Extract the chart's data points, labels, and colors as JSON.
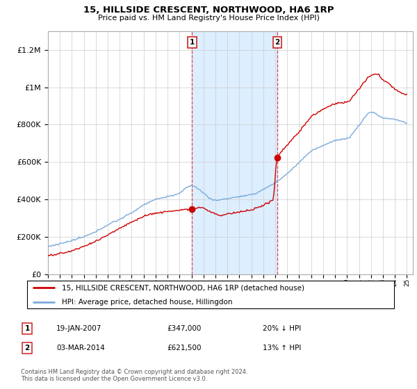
{
  "title": "15, HILLSIDE CRESCENT, NORTHWOOD, HA6 1RP",
  "subtitle": "Price paid vs. HM Land Registry's House Price Index (HPI)",
  "legend_line1": "15, HILLSIDE CRESCENT, NORTHWOOD, HA6 1RP (detached house)",
  "legend_line2": "HPI: Average price, detached house, Hillingdon",
  "sale1_date": "19-JAN-2007",
  "sale1_price": "£347,000",
  "sale1_hpi": "20% ↓ HPI",
  "sale1_year": 2007.05,
  "sale1_value": 347000,
  "sale2_date": "03-MAR-2014",
  "sale2_price": "£621,500",
  "sale2_hpi": "13% ↑ HPI",
  "sale2_year": 2014.17,
  "sale2_value": 621500,
  "footer": "Contains HM Land Registry data © Crown copyright and database right 2024.\nThis data is licensed under the Open Government Licence v3.0.",
  "ylim": [
    0,
    1300000
  ],
  "xlim_start": 1995,
  "xlim_end": 2025.5,
  "house_color": "#cc0000",
  "hpi_color": "#7aabdb",
  "shade_color": "#ddeeff",
  "background_color": "#ffffff",
  "grid_color": "#cccccc",
  "yticks": [
    0,
    200000,
    400000,
    600000,
    800000,
    1000000,
    1200000
  ]
}
